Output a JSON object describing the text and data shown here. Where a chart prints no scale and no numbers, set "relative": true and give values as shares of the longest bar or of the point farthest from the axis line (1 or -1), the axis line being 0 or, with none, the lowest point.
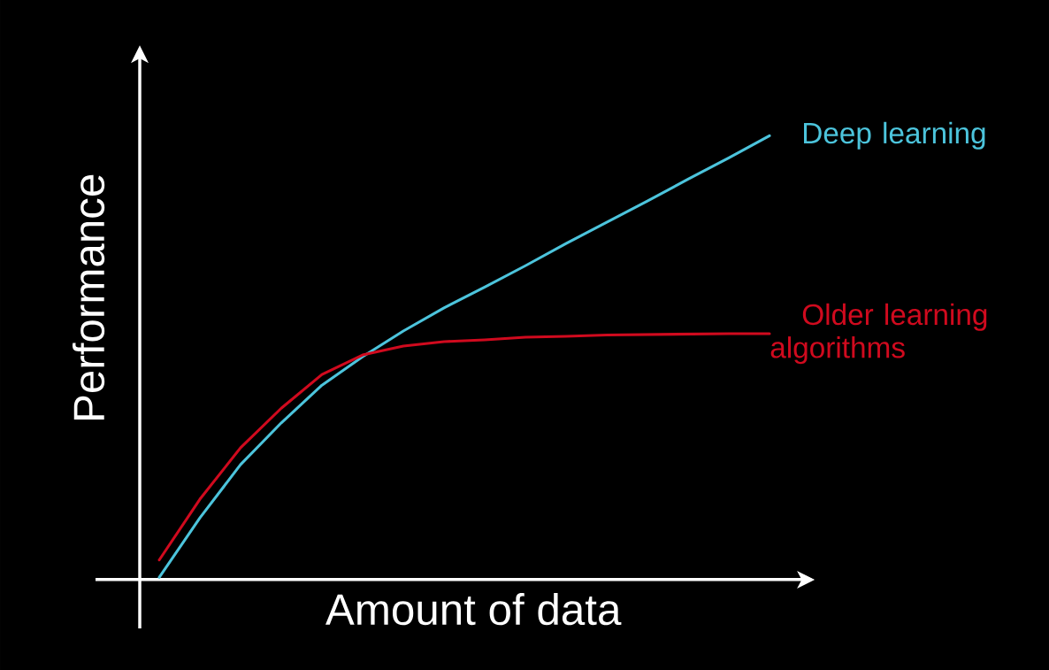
{
  "chart_data": {
    "type": "line",
    "relative": true,
    "xlabel": "Amount of data",
    "ylabel": "Performance",
    "categories": [
      null,
      null,
      null,
      null,
      null,
      null,
      null,
      null,
      null,
      null,
      null,
      null,
      null,
      null,
      null,
      null
    ],
    "series": [
      {
        "name": "Deep learning",
        "color": "#4cc4dc",
        "values": [
          0.005,
          0.139,
          0.259,
          0.353,
          0.438,
          0.502,
          0.56,
          0.612,
          0.659,
          0.707,
          0.757,
          0.805,
          0.853,
          0.902,
          0.95,
          1.0
        ]
      },
      {
        "name": "Older learning algorithms",
        "color": "#d00a1e",
        "values": [
          0.044,
          0.181,
          0.297,
          0.386,
          0.462,
          0.506,
          0.526,
          0.536,
          0.54,
          0.546,
          0.548,
          0.551,
          0.552,
          0.553,
          0.554,
          0.554
        ]
      }
    ]
  }
}
